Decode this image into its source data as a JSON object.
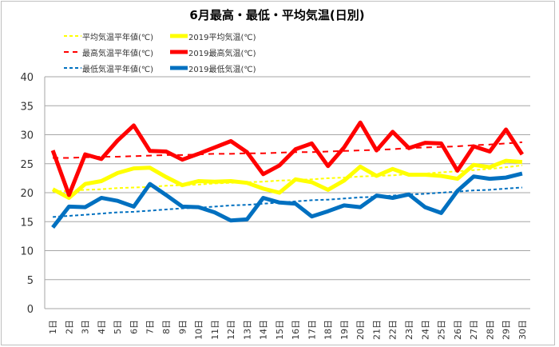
{
  "chart_data": {
    "type": "line",
    "title": "6月最高・最低・平均気温(日別)",
    "xlabel": "",
    "ylabel": "",
    "ylim": [
      0,
      40
    ],
    "yticks": [
      "0",
      "5",
      "10",
      "15",
      "20",
      "25",
      "30",
      "35",
      "40"
    ],
    "ytick_values": [
      0,
      5,
      10,
      15,
      20,
      25,
      30,
      35,
      40
    ],
    "grid": true,
    "legend_position": "top-left",
    "categories": [
      "1日",
      "2日",
      "3日",
      "4日",
      "5日",
      "6日",
      "7日",
      "8日",
      "9日",
      "10日",
      "11日",
      "12日",
      "13日",
      "14日",
      "15日",
      "16日",
      "17日",
      "18日",
      "19日",
      "20日",
      "21日",
      "22日",
      "23日",
      "24日",
      "25日",
      "26日",
      "27日",
      "28日",
      "29日",
      "30日"
    ],
    "series": [
      {
        "name": "平均気温平年値(℃)",
        "color": "#ffff00",
        "style": "dashed",
        "values": [
          20.2,
          20.3,
          20.5,
          20.6,
          20.8,
          20.9,
          21.0,
          21.2,
          21.3,
          21.4,
          21.6,
          21.7,
          21.8,
          21.9,
          22.1,
          22.2,
          22.3,
          22.5,
          22.6,
          22.8,
          22.9,
          23.0,
          23.2,
          23.3,
          23.5,
          23.7,
          23.9,
          24.1,
          24.4,
          24.7
        ]
      },
      {
        "name": "2019平均気温(℃)",
        "color": "#ffff00",
        "style": "solid",
        "values": [
          20.6,
          19.1,
          21.5,
          22.0,
          23.4,
          24.2,
          24.3,
          22.7,
          21.3,
          22.0,
          21.9,
          22.0,
          21.7,
          20.7,
          20.0,
          22.3,
          21.8,
          20.5,
          22.1,
          24.5,
          22.9,
          24.1,
          23.1,
          23.1,
          22.9,
          22.4,
          24.8,
          24.4,
          25.5,
          25.3
        ]
      },
      {
        "name": "最高気温平年値(℃)",
        "color": "#ff0000",
        "style": "dashed",
        "values": [
          26.0,
          26.0,
          26.1,
          26.2,
          26.2,
          26.3,
          26.4,
          26.5,
          26.5,
          26.6,
          26.7,
          26.7,
          26.8,
          26.8,
          26.9,
          27.0,
          27.0,
          27.1,
          27.2,
          27.3,
          27.4,
          27.5,
          27.7,
          27.8,
          27.9,
          28.0,
          28.2,
          28.3,
          28.5,
          28.7
        ]
      },
      {
        "name": "2019最高気温(℃)",
        "color": "#ff0000",
        "style": "solid",
        "values": [
          27.3,
          19.6,
          26.6,
          25.8,
          29.0,
          31.6,
          27.2,
          27.1,
          25.7,
          26.7,
          27.8,
          28.9,
          27.0,
          23.2,
          24.7,
          27.5,
          28.5,
          24.6,
          27.8,
          32.1,
          27.3,
          30.5,
          27.7,
          28.6,
          28.5,
          23.8,
          28.0,
          27.1,
          30.9,
          26.6
        ]
      },
      {
        "name": "最低気温平年値(℃)",
        "color": "#0070c0",
        "style": "dashed",
        "values": [
          15.8,
          16.0,
          16.2,
          16.4,
          16.6,
          16.7,
          16.9,
          17.1,
          17.3,
          17.4,
          17.6,
          17.8,
          17.9,
          18.1,
          18.3,
          18.5,
          18.7,
          18.8,
          19.0,
          19.2,
          19.3,
          19.5,
          19.7,
          19.8,
          20.0,
          20.2,
          20.4,
          20.5,
          20.7,
          20.9
        ]
      },
      {
        "name": "2019最低気温(℃)",
        "color": "#0070c0",
        "style": "solid",
        "values": [
          14.0,
          17.6,
          17.5,
          19.1,
          18.6,
          17.6,
          21.5,
          19.6,
          17.6,
          17.5,
          16.6,
          15.2,
          15.4,
          19.1,
          18.3,
          18.1,
          15.9,
          16.8,
          17.8,
          17.5,
          19.5,
          19.1,
          19.7,
          17.5,
          16.5,
          20.3,
          22.8,
          22.4,
          22.6,
          23.3
        ]
      }
    ]
  }
}
